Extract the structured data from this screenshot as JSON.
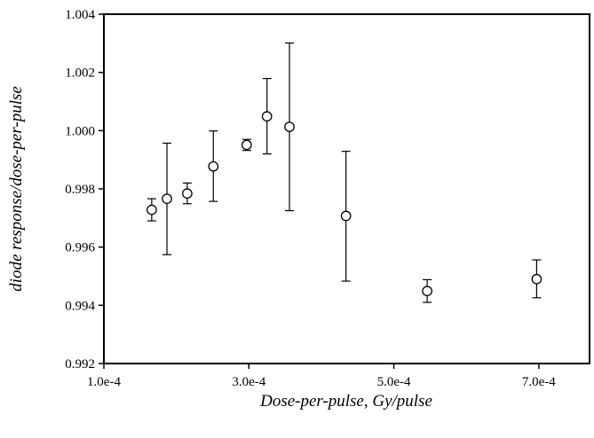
{
  "chart_data": {
    "type": "scatter",
    "title": "",
    "xlabel": "Dose-per-pulse, Gy/pulse",
    "ylabel": "diode response/dose-per-pulse",
    "xlim": [
      0.0001,
      0.00077
    ],
    "ylim": [
      0.992,
      1.004
    ],
    "x_ticks": [
      0.0001,
      0.0003,
      0.0005,
      0.0007
    ],
    "x_tick_labels": [
      "1.0e-4",
      "3.0e-4",
      "5.0e-4",
      "7.0e-4"
    ],
    "y_ticks": [
      0.992,
      0.994,
      0.996,
      0.998,
      1.0,
      1.002,
      1.004
    ],
    "y_tick_labels": [
      "0.992",
      "0.994",
      "0.996",
      "0.998",
      "1.000",
      "1.002",
      "1.004"
    ],
    "grid": false,
    "legend": "none",
    "series": [
      {
        "points": [
          {
            "x": 0.000166,
            "y": 0.99728,
            "err_low": 0.9969,
            "err_high": 0.99766
          },
          {
            "x": 0.000187,
            "y": 0.99766,
            "err_low": 0.99574,
            "err_high": 0.99957
          },
          {
            "x": 0.000215,
            "y": 0.99784,
            "err_low": 0.99749,
            "err_high": 0.9982
          },
          {
            "x": 0.000251,
            "y": 0.99877,
            "err_low": 0.99757,
            "err_high": 0.99999
          },
          {
            "x": 0.000297,
            "y": 0.99951,
            "err_low": 0.99932,
            "err_high": 0.9997
          },
          {
            "x": 0.000325,
            "y": 1.00049,
            "err_low": 0.9992,
            "err_high": 1.00179
          },
          {
            "x": 0.000356,
            "y": 1.00013,
            "err_low": 0.99725,
            "err_high": 1.00301
          },
          {
            "x": 0.000434,
            "y": 0.99707,
            "err_low": 0.99483,
            "err_high": 0.99929
          },
          {
            "x": 0.000546,
            "y": 0.99449,
            "err_low": 0.9941,
            "err_high": 0.99488
          },
          {
            "x": 0.000697,
            "y": 0.9949,
            "err_low": 0.99426,
            "err_high": 0.99556
          }
        ]
      }
    ]
  }
}
